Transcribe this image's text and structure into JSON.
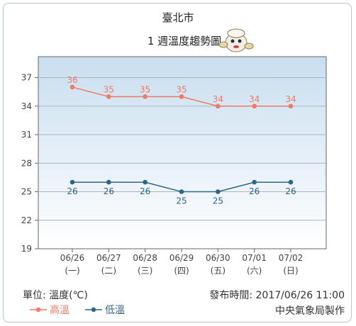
{
  "header": {
    "city": "臺北市",
    "subtitle": "1 週溫度趨勢圖"
  },
  "footer": {
    "unit": "單位: 溫度(℃)",
    "issued": "發布時間: 2017/06/26 11:00",
    "agency": "中央氣象局製作"
  },
  "chart_data": {
    "type": "line",
    "categories": [
      "06/26",
      "06/27",
      "06/28",
      "06/29",
      "06/30",
      "07/01",
      "07/02"
    ],
    "weekdays": [
      "(一)",
      "(二)",
      "(三)",
      "(四)",
      "(五)",
      "(六)",
      "(日)"
    ],
    "y_ticks": [
      19,
      22,
      25,
      28,
      31,
      34,
      37
    ],
    "ylim": [
      19,
      39.2
    ],
    "grid": true,
    "legend_position": "bottom-left",
    "series": [
      {
        "key": "high",
        "name": "高溫",
        "color": "#f07a62",
        "values": [
          36,
          35,
          35,
          35,
          34,
          34,
          34
        ],
        "label_pos": "above"
      },
      {
        "key": "low",
        "name": "低溫",
        "color": "#2e6688",
        "values": [
          26,
          26,
          26,
          25,
          25,
          26,
          26
        ],
        "label_pos": "below"
      }
    ]
  }
}
